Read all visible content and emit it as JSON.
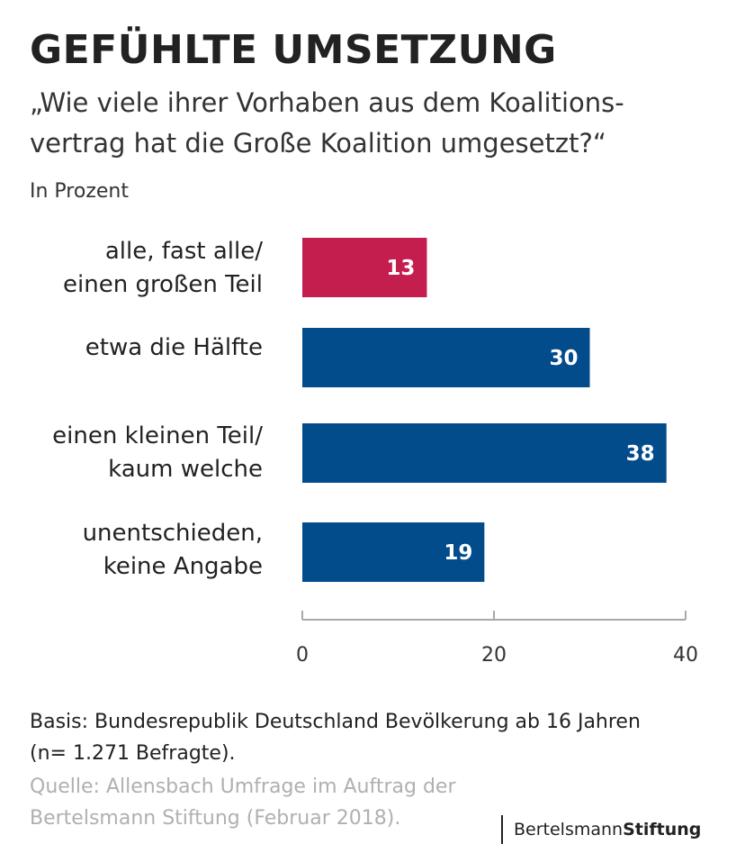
{
  "title": "GEFÜHLTE UMSETZUNG",
  "subtitle": {
    "line1": "„Wie viele ihrer Vorhaben aus dem Koalitions-",
    "line2": "vertrag hat die Große Koalition umgesetzt?“"
  },
  "unit_label": "In Prozent",
  "chart_data": {
    "type": "bar",
    "orientation": "horizontal",
    "title": "GEFÜHLTE UMSETZUNG",
    "ylabel": "In Prozent",
    "categories": [
      [
        "alle, fast alle/",
        "einen großen Teil"
      ],
      [
        "etwa die Hälfte"
      ],
      [
        "einen kleinen Teil/",
        "kaum welche"
      ],
      [
        "unentschieden,",
        "keine Angabe"
      ]
    ],
    "values": [
      13,
      30,
      38,
      19
    ],
    "colors": [
      "#c41e4f",
      "#034c8c",
      "#034c8c",
      "#034c8c"
    ],
    "xlim": [
      0,
      40
    ],
    "xticks": [
      0,
      20,
      40
    ],
    "grid": false,
    "data_labels": true
  },
  "footer": {
    "basis_line1": "Basis: Bundesrepublik Deutschland Bevölkerung ab 16 Jahren",
    "basis_line2": "(n= 1.271 Befragte).",
    "source_line1": "Quelle: Allensbach Umfrage im Auftrag der",
    "source_line2": "Bertelsmann Stiftung (Februar 2018)."
  },
  "logo": {
    "part1": "Bertelsmann",
    "part2": "Stiftung"
  },
  "colors": {
    "accent": "#c41e4f",
    "primary": "#034c8c",
    "axis": "#a8a8a8",
    "muted": "#b0b0b0"
  }
}
